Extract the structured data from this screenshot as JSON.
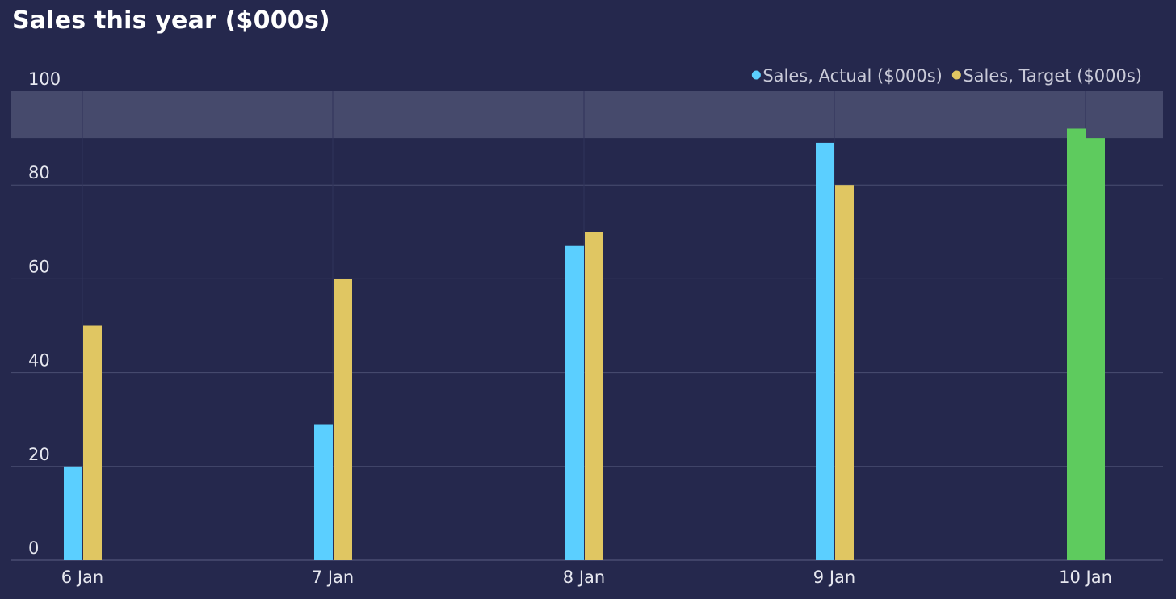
{
  "title": "Sales this year ($000s)",
  "chart_data": {
    "type": "bar",
    "title": "Sales this year ($000s)",
    "categories": [
      "6 Jan",
      "7 Jan",
      "8 Jan",
      "9 Jan",
      "10 Jan"
    ],
    "series": [
      {
        "name": "Sales, Actual ($000s)",
        "values": [
          20,
          29,
          67,
          89,
          92
        ],
        "color": "#5bcfff"
      },
      {
        "name": "Sales, Target ($000s)",
        "values": [
          50,
          60,
          70,
          80,
          90
        ],
        "color": "#e0c662"
      }
    ],
    "highlight_color": "#5ecb5e",
    "highlight_category": "10 Jan",
    "target_band": [
      90,
      100
    ],
    "band_color": "#464a6c",
    "ylim": [
      0,
      100
    ],
    "yticks": [
      0,
      20,
      40,
      60,
      80,
      100
    ],
    "xlabel": "",
    "ylabel": "",
    "grid": true,
    "legend_position": "top-right"
  }
}
